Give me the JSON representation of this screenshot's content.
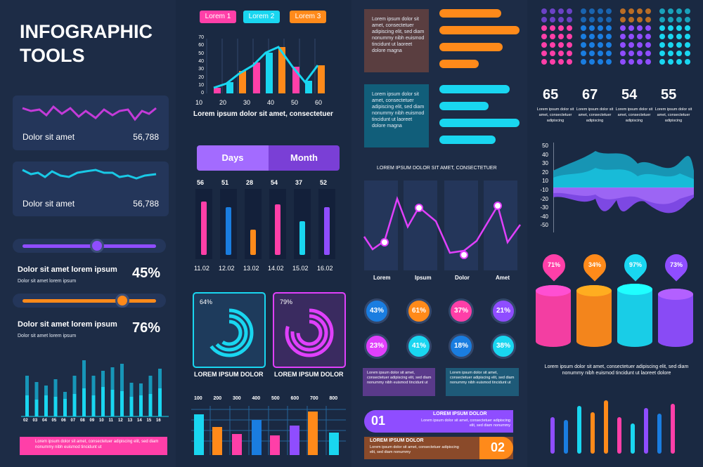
{
  "title_line1": "INFOGRAPHIC",
  "title_line2": "TOOLS",
  "colors": {
    "pink": "#ff3fa8",
    "cyan": "#19d6f0",
    "orange": "#ff8a1a",
    "purple": "#8f4dff",
    "blue": "#1a7de0",
    "magenta": "#e040fb"
  },
  "mini_cards": [
    {
      "label": "Dolor sit amet",
      "value": "56,788"
    },
    {
      "label": "Dolor sit amet",
      "value": "56,788"
    }
  ],
  "sliders": [
    {
      "title": "Dolor sit amet lorem ipsum",
      "subtitle": "Dolor sit amet lorem ipsum",
      "percent": "45%",
      "level": 0.45
    },
    {
      "title": "Dolor sit amet lorem ipsum",
      "subtitle": "Dolor sit amet lorem ipsum",
      "percent": "76%",
      "level": 0.76
    }
  ],
  "bar_chart_left": {
    "categories": [
      "02",
      "03",
      "04",
      "05",
      "06",
      "07",
      "08",
      "09",
      "10",
      "11",
      "12",
      "13",
      "14",
      "15",
      "16"
    ],
    "values": [
      58,
      49,
      44,
      53,
      35,
      58,
      80,
      58,
      65,
      70,
      75,
      48,
      47,
      58,
      68
    ],
    "values2": [
      30,
      24,
      30,
      28,
      25,
      32,
      40,
      30,
      42,
      38,
      36,
      28,
      30,
      32,
      40
    ]
  },
  "banner_left": "Lorem ipsum dolor sit amet, consectetuer adipiscing elit, sed diam nonummy nibh euismod tincidunt ut",
  "legend": [
    "Lorem 1",
    "Lorem 2",
    "Lorem 3"
  ],
  "combo_chart": {
    "x": [
      10,
      20,
      30,
      40,
      50,
      60
    ],
    "yticks": [
      "0",
      "10",
      "20",
      "30",
      "40",
      "50",
      "60",
      "70"
    ],
    "caption": "Lorem ipsum dolor sit amet, consectetuer"
  },
  "tabs": {
    "days": "Days",
    "month": "Month"
  },
  "days_chart": {
    "values": [
      "56",
      "51",
      "28",
      "54",
      "37",
      "52"
    ],
    "dates": [
      "11.02",
      "12.02",
      "13.02",
      "14.02",
      "15.02",
      "16.02"
    ],
    "levels": [
      0.95,
      0.85,
      0.45,
      0.9,
      0.6,
      0.85
    ]
  },
  "donuts": [
    {
      "percent": "64%",
      "caption": "LOREM IPSUM DOLOR",
      "level": 0.64
    },
    {
      "percent": "79%",
      "caption": "LOREM IPSUM DOLOR",
      "level": 0.79
    }
  ],
  "bottom_chart2": {
    "categories": [
      "100",
      "200",
      "300",
      "400",
      "500",
      "600",
      "700",
      "800"
    ]
  },
  "text_cards": [
    "Lorem ipsum dolor sit amet, consectetuer adipiscing elit, sed diam nonummy nibh euismod tincidunt ut laoreet dolore magna",
    "Lorem ipsum dolor sit amet, consectetuer adipiscing elit, sed diam nonummy nibh euismod tincidunt ut laoreet dolore magna"
  ],
  "line_chart3": {
    "title": "LOREM IPSUM DOLOR SIT AMET, CONSECTETUER",
    "categories": [
      "Lorem",
      "Ipsum",
      "Dolor",
      "Amet"
    ]
  },
  "circles": [
    "43%",
    "61%",
    "37%",
    "21%",
    "23%",
    "41%",
    "18%",
    "38%"
  ],
  "small_notes": [
    "Lorem ipsum dolor sit amet, consectetuer adipiscing elit, sed diam nonummy nibh euismod tincidunt ut",
    "Lorem ipsum dolor sit amet, consectetuer adipiscing elit, sed diam nonummy nibh euismod tincidunt ut"
  ],
  "steps": [
    {
      "num": "01",
      "title": "LOREM IPSUM DOLOR",
      "text": "Lorem ipsum dolor sit amet, consectetuer adipiscing elit, sed diam nonummy"
    },
    {
      "num": "02",
      "title": "LOREM IPSUM DOLOR",
      "text": "Lorem ipsum dolor sit amet, consectetuer adipiscing elit, sed diam nonummy"
    }
  ],
  "dot_stats": [
    {
      "value": "65",
      "text": "Lorem ipsum dolor sit amet, consectetuer adipiscing"
    },
    {
      "value": "67",
      "text": "Lorem ipsum dolor sit amet, consectetuer adipiscing"
    },
    {
      "value": "54",
      "text": "Lorem ipsum dolor sit amet, consectetuer adipiscing"
    },
    {
      "value": "55",
      "text": "Lorem ipsum dolor sit amet, consectetuer adipiscing"
    }
  ],
  "area_chart": {
    "yticks": [
      "50",
      "40",
      "30",
      "20",
      "10",
      "-10",
      "-20",
      "-30",
      "-40",
      "-50"
    ]
  },
  "cylinders": [
    "71%",
    "34%",
    "97%",
    "73%"
  ],
  "bottom_text4": "Lorem ipsum dolor sit amet, consectetuer adipiscing elit, sed diam nonummy nibh euismod tincidunt ut laoreet dolore",
  "bars4": [
    0.55,
    0.5,
    0.72,
    0.62,
    0.8,
    0.55,
    0.45,
    0.68,
    0.6,
    0.75
  ]
}
